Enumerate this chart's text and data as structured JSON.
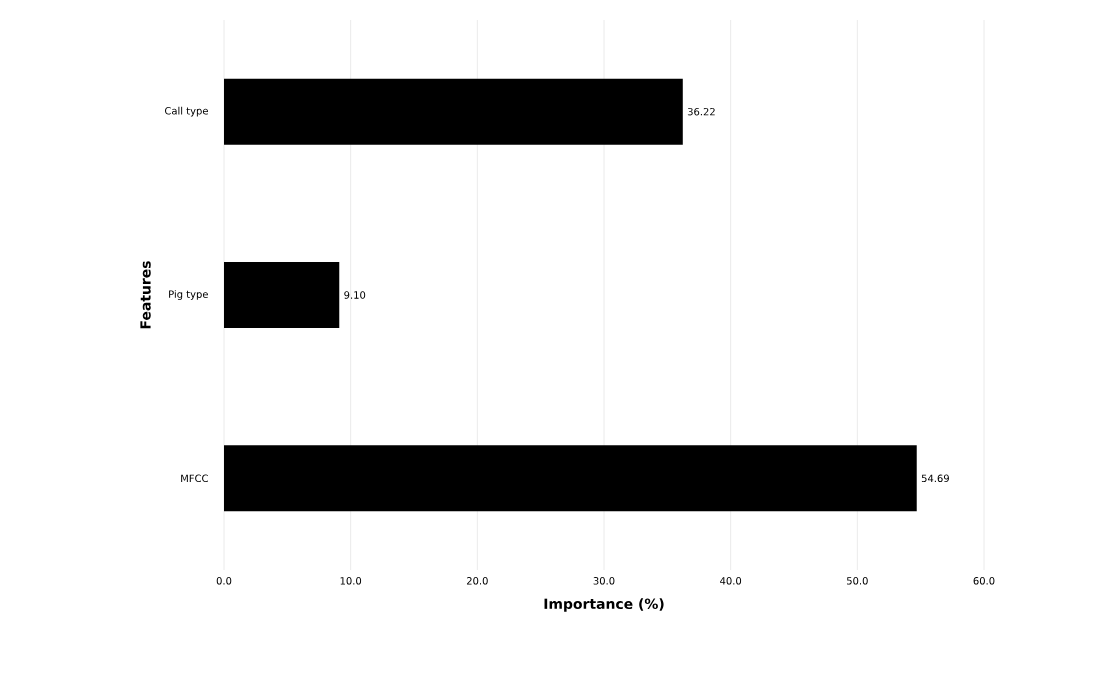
{
  "chart_data": {
    "type": "bar",
    "orientation": "horizontal",
    "xlabel": "Importance (%)",
    "ylabel": "Features",
    "categories": [
      "Call type",
      "Pig type",
      "MFCC"
    ],
    "values": [
      36.22,
      9.1,
      54.69
    ],
    "value_labels": [
      "36.22",
      "9.10",
      "54.69"
    ],
    "color": "#000000",
    "xlim": [
      0,
      60
    ],
    "xticks": [
      {
        "value": 0,
        "label": "0.0"
      },
      {
        "value": 10,
        "label": "10.0"
      },
      {
        "value": 20,
        "label": "20.0"
      },
      {
        "value": 30,
        "label": "30.0"
      },
      {
        "value": 40,
        "label": "40.0"
      },
      {
        "value": 50,
        "label": "50.0"
      },
      {
        "value": 60,
        "label": "60.0"
      }
    ],
    "grid": "x"
  }
}
